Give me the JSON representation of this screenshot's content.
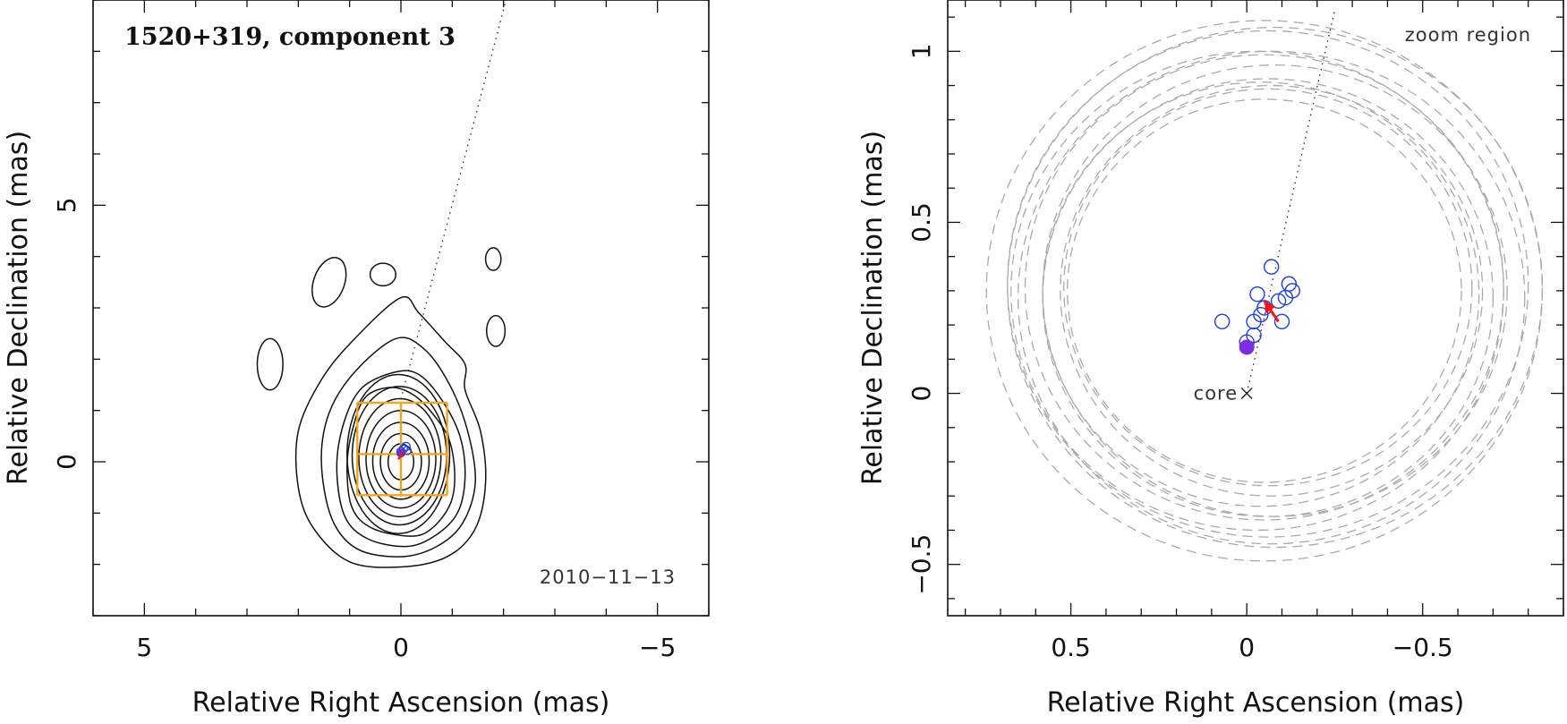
{
  "chart_data": [
    {
      "type": "contour",
      "title": "1520+319, component 3",
      "date_label": "2010−11−13",
      "xlabel": "Relative Right Ascension (mas)",
      "ylabel": "Relative Declination (mas)",
      "xlim": [
        6,
        -6
      ],
      "ylim": [
        -3,
        9
      ],
      "x_tick_labels": [
        {
          "value": 5,
          "label": "5"
        },
        {
          "value": 0,
          "label": "0"
        },
        {
          "value": -5,
          "label": "−5"
        }
      ],
      "y_tick_labels": [
        {
          "value": 0,
          "label": "0"
        },
        {
          "value": 5,
          "label": "5"
        }
      ],
      "contour_levels": [
        {
          "cx": 0.0,
          "cy": 0.0,
          "rx": 0.25,
          "ry": 0.35
        },
        {
          "cx": 0.0,
          "cy": 0.0,
          "rx": 0.4,
          "ry": 0.55
        },
        {
          "cx": 0.0,
          "cy": 0.02,
          "rx": 0.55,
          "ry": 0.75
        },
        {
          "cx": 0.0,
          "cy": 0.05,
          "rx": 0.68,
          "ry": 0.95
        },
        {
          "cx": 0.02,
          "cy": 0.08,
          "rx": 0.8,
          "ry": 1.15
        },
        {
          "cx": 0.03,
          "cy": 0.12,
          "rx": 0.92,
          "ry": 1.35
        },
        {
          "cx": 0.05,
          "cy": 0.15,
          "rx": 1.0,
          "ry": 1.55
        }
      ],
      "outer_contours": [
        {
          "points": [
            [
              -0.2,
              -1.45
            ],
            [
              0.55,
              -1.3
            ],
            [
              0.95,
              -0.9
            ],
            [
              1.05,
              -0.1
            ],
            [
              0.95,
              0.6
            ],
            [
              0.7,
              1.25
            ],
            [
              0.2,
              1.45
            ],
            [
              -0.25,
              1.3
            ],
            [
              -0.65,
              0.9
            ],
            [
              -0.95,
              0.4
            ],
            [
              -1.05,
              -0.3
            ],
            [
              -0.95,
              -0.85
            ],
            [
              -0.6,
              -1.3
            ]
          ]
        },
        {
          "points": [
            [
              -0.1,
              -1.65
            ],
            [
              0.65,
              -1.5
            ],
            [
              1.1,
              -1.05
            ],
            [
              1.25,
              -0.1
            ],
            [
              1.1,
              0.8
            ],
            [
              0.75,
              1.45
            ],
            [
              0.1,
              1.75
            ],
            [
              -0.35,
              1.7
            ],
            [
              -0.8,
              1.2
            ],
            [
              -1.15,
              0.5
            ],
            [
              -1.25,
              -0.3
            ],
            [
              -1.1,
              -1.0
            ],
            [
              -0.65,
              -1.45
            ]
          ]
        },
        {
          "points": [
            [
              0.0,
              -1.85
            ],
            [
              0.85,
              -1.7
            ],
            [
              1.35,
              -1.1
            ],
            [
              1.55,
              0.0
            ],
            [
              1.4,
              0.95
            ],
            [
              0.9,
              1.75
            ],
            [
              0.1,
              2.4
            ],
            [
              -0.45,
              2.2
            ],
            [
              -0.95,
              1.5
            ],
            [
              -1.3,
              0.6
            ],
            [
              -1.45,
              -0.4
            ],
            [
              -1.2,
              -1.2
            ],
            [
              -0.7,
              -1.65
            ]
          ]
        },
        {
          "points": [
            [
              0.0,
              -2.05
            ],
            [
              1.0,
              -1.95
            ],
            [
              1.7,
              -1.3
            ],
            [
              2.0,
              -0.5
            ],
            [
              2.0,
              0.6
            ],
            [
              1.55,
              1.6
            ],
            [
              0.9,
              2.4
            ],
            [
              0.0,
              3.2
            ],
            [
              -0.35,
              2.9
            ],
            [
              -0.85,
              2.35
            ],
            [
              -1.25,
              1.9
            ],
            [
              -1.25,
              1.4
            ],
            [
              -1.55,
              0.6
            ],
            [
              -1.65,
              -0.4
            ],
            [
              -1.45,
              -1.3
            ],
            [
              -0.9,
              -1.85
            ]
          ]
        }
      ],
      "islands": [
        {
          "cx": 1.4,
          "cy": 3.5,
          "rx": 0.3,
          "ry": 0.5,
          "rot": 20
        },
        {
          "cx": 0.35,
          "cy": 3.65,
          "rx": 0.25,
          "ry": 0.22,
          "rot": 0
        },
        {
          "cx": -1.8,
          "cy": 3.95,
          "rx": 0.15,
          "ry": 0.22,
          "rot": 0
        },
        {
          "cx": -1.85,
          "cy": 2.55,
          "rx": 0.18,
          "ry": 0.3,
          "rot": 0
        },
        {
          "cx": 2.55,
          "cy": 1.9,
          "rx": 0.25,
          "ry": 0.5,
          "rot": 0
        }
      ],
      "box_grid": {
        "x": [
          0.85,
          0.0,
          -0.9
        ],
        "y": [
          -0.65,
          0.15,
          1.15
        ]
      },
      "jet_direction_line": {
        "x": [
          0.0,
          -2.05
        ],
        "y": [
          0.0,
          9.0
        ]
      },
      "blue_markers": [
        {
          "x": -0.05,
          "y": 0.25
        },
        {
          "x": -0.1,
          "y": 0.3
        },
        {
          "x": 0.0,
          "y": 0.2
        },
        {
          "x": -0.12,
          "y": 0.22
        }
      ],
      "red_marker": {
        "x": -0.05,
        "y": 0.2
      }
    },
    {
      "type": "scatter",
      "region_label": "zoom region",
      "core_label": "core",
      "xlabel": "Relative Right Ascension (mas)",
      "ylabel": "Relative Declination (mas)",
      "xlim": [
        0.85,
        -0.9
      ],
      "ylim": [
        -0.65,
        1.15
      ],
      "x_tick_labels": [
        {
          "value": 0.5,
          "label": "0.5"
        },
        {
          "value": 0,
          "label": "0"
        },
        {
          "value": -0.5,
          "label": "−0.5"
        }
      ],
      "y_tick_labels": [
        {
          "value": -0.5,
          "label": "−0.5"
        },
        {
          "value": 0,
          "label": "0"
        },
        {
          "value": 0.5,
          "label": "0.5"
        },
        {
          "value": 1,
          "label": "1"
        }
      ],
      "core_position": {
        "x": 0,
        "y": 0
      },
      "jet_direction_line": {
        "x": [
          0.0,
          -0.25
        ],
        "y": [
          0.0,
          1.12
        ]
      },
      "error_circles": [
        {
          "cx": -0.05,
          "cy": 0.3,
          "r": 0.56
        },
        {
          "cx": -0.06,
          "cy": 0.31,
          "r": 0.58
        },
        {
          "cx": -0.07,
          "cy": 0.3,
          "r": 0.6
        },
        {
          "cx": -0.04,
          "cy": 0.29,
          "r": 0.62
        },
        {
          "cx": -0.06,
          "cy": 0.28,
          "r": 0.64
        },
        {
          "cx": -0.08,
          "cy": 0.3,
          "r": 0.66
        },
        {
          "cx": -0.05,
          "cy": 0.31,
          "r": 0.68
        },
        {
          "cx": -0.03,
          "cy": 0.3,
          "r": 0.7
        },
        {
          "cx": -0.07,
          "cy": 0.28,
          "r": 0.72
        },
        {
          "cx": -0.06,
          "cy": 0.32,
          "r": 0.74
        },
        {
          "cx": -0.08,
          "cy": 0.31,
          "r": 0.76
        },
        {
          "cx": -0.05,
          "cy": 0.3,
          "r": 0.79
        }
      ],
      "blue_points": [
        {
          "x": 0.07,
          "y": 0.21
        },
        {
          "x": -0.07,
          "y": 0.37
        },
        {
          "x": -0.03,
          "y": 0.29
        },
        {
          "x": -0.12,
          "y": 0.32
        },
        {
          "x": -0.13,
          "y": 0.3
        },
        {
          "x": -0.11,
          "y": 0.28
        },
        {
          "x": -0.09,
          "y": 0.27
        },
        {
          "x": -0.1,
          "y": 0.21
        },
        {
          "x": -0.05,
          "y": 0.25
        },
        {
          "x": -0.04,
          "y": 0.23
        },
        {
          "x": -0.02,
          "y": 0.21
        },
        {
          "x": -0.02,
          "y": 0.17
        },
        {
          "x": 0.0,
          "y": 0.15
        }
      ],
      "filled_point": {
        "x": 0.0,
        "y": 0.135
      },
      "red_arrow": {
        "x": [
          -0.09,
          -0.05
        ],
        "y": [
          0.21,
          0.27
        ]
      }
    }
  ]
}
